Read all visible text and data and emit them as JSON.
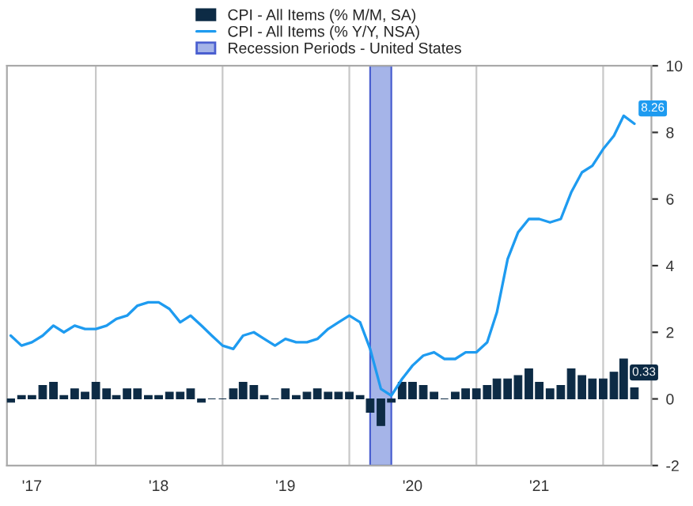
{
  "chart_data": {
    "type": "bar",
    "x": [
      "2017-05",
      "2017-06",
      "2017-07",
      "2017-08",
      "2017-09",
      "2017-10",
      "2017-11",
      "2017-12",
      "2018-01",
      "2018-02",
      "2018-03",
      "2018-04",
      "2018-05",
      "2018-06",
      "2018-07",
      "2018-08",
      "2018-09",
      "2018-10",
      "2018-11",
      "2018-12",
      "2019-01",
      "2019-02",
      "2019-03",
      "2019-04",
      "2019-05",
      "2019-06",
      "2019-07",
      "2019-08",
      "2019-09",
      "2019-10",
      "2019-11",
      "2019-12",
      "2020-01",
      "2020-02",
      "2020-03",
      "2020-04",
      "2020-05",
      "2020-06",
      "2020-07",
      "2020-08",
      "2020-09",
      "2020-10",
      "2020-11",
      "2020-12",
      "2021-01",
      "2021-02",
      "2021-03",
      "2021-04",
      "2021-05",
      "2021-06",
      "2021-07",
      "2021-08",
      "2021-09",
      "2021-10",
      "2021-11",
      "2021-12",
      "2022-01",
      "2022-02",
      "2022-03",
      "2022-04"
    ],
    "series": [
      {
        "name": "CPI - All Items (% M/M, SA)",
        "color": "#0d2b45",
        "values": [
          -0.1,
          0.1,
          0.1,
          0.4,
          0.5,
          0.1,
          0.3,
          0.2,
          0.5,
          0.3,
          0.1,
          0.3,
          0.3,
          0.1,
          0.1,
          0.2,
          0.2,
          0.3,
          -0.1,
          0.0,
          0.0,
          0.3,
          0.5,
          0.4,
          0.1,
          0.0,
          0.3,
          0.1,
          0.2,
          0.3,
          0.2,
          0.2,
          0.2,
          0.1,
          -0.4,
          -0.8,
          -0.1,
          0.5,
          0.5,
          0.4,
          0.2,
          0.0,
          0.2,
          0.3,
          0.3,
          0.4,
          0.6,
          0.6,
          0.7,
          0.9,
          0.5,
          0.3,
          0.4,
          0.9,
          0.7,
          0.6,
          0.6,
          0.8,
          1.2,
          0.33
        ],
        "value_labels": [
          null,
          null,
          null,
          null,
          null,
          null,
          null,
          null,
          null,
          null,
          null,
          null,
          null,
          null,
          null,
          null,
          null,
          null,
          null,
          null,
          null,
          null,
          null,
          null,
          null,
          null,
          null,
          null,
          null,
          null,
          null,
          null,
          null,
          null,
          null,
          null,
          null,
          null,
          null,
          null,
          null,
          null,
          null,
          null,
          null,
          null,
          null,
          null,
          null,
          null,
          null,
          null,
          null,
          null,
          null,
          null,
          null,
          null,
          null,
          "0.33"
        ]
      },
      {
        "name": "CPI - All Items (% Y/Y, NSA)",
        "type": "line",
        "color": "#1e9bf0",
        "values": [
          1.9,
          1.6,
          1.7,
          1.9,
          2.2,
          2.0,
          2.2,
          2.1,
          2.1,
          2.2,
          2.4,
          2.5,
          2.8,
          2.9,
          2.9,
          2.7,
          2.3,
          2.5,
          2.2,
          1.9,
          1.6,
          1.5,
          1.9,
          2.0,
          1.8,
          1.6,
          1.8,
          1.7,
          1.7,
          1.8,
          2.1,
          2.3,
          2.5,
          2.3,
          1.5,
          0.3,
          0.1,
          0.6,
          1.0,
          1.3,
          1.4,
          1.2,
          1.2,
          1.4,
          1.4,
          1.7,
          2.6,
          4.2,
          5.0,
          5.4,
          5.4,
          5.3,
          5.4,
          6.2,
          6.8,
          7.0,
          7.5,
          7.9,
          8.5,
          8.26
        ],
        "value_labels": [
          null,
          null,
          null,
          null,
          null,
          null,
          null,
          null,
          null,
          null,
          null,
          null,
          null,
          null,
          null,
          null,
          null,
          null,
          null,
          null,
          null,
          null,
          null,
          null,
          null,
          null,
          null,
          null,
          null,
          null,
          null,
          null,
          null,
          null,
          null,
          null,
          null,
          null,
          null,
          null,
          null,
          null,
          null,
          null,
          null,
          null,
          null,
          null,
          null,
          null,
          null,
          null,
          null,
          null,
          null,
          null,
          null,
          null,
          null,
          "8.26"
        ]
      }
    ],
    "bands": [
      {
        "axis": "x",
        "from": "2020-03-01",
        "to": "2020-05-01",
        "label": "Recession Periods - United States",
        "color": "#a5b4e8"
      }
    ],
    "ref_lines": [
      {
        "axis": "x",
        "value": "2018-01-01",
        "color": "#c8c8c8"
      },
      {
        "axis": "x",
        "value": "2019-01-01",
        "color": "#c8c8c8"
      },
      {
        "axis": "x",
        "value": "2020-01-01",
        "color": "#c8c8c8"
      },
      {
        "axis": "x",
        "value": "2021-01-01",
        "color": "#c8c8c8"
      },
      {
        "axis": "x",
        "value": "2022-01-01",
        "color": "#c8c8c8"
      }
    ],
    "xlim": [
      "2017-04-20",
      "2022-05-20"
    ],
    "xticks": [
      {
        "value": "2017-07-01",
        "label": "'17"
      },
      {
        "value": "2018-07-01",
        "label": "'18"
      },
      {
        "value": "2019-07-01",
        "label": "'19"
      },
      {
        "value": "2020-07-01",
        "label": "'20"
      },
      {
        "value": "2021-07-01",
        "label": "'21"
      }
    ],
    "ylim": [
      -2,
      10
    ],
    "yticks": [
      -2,
      0,
      2,
      4,
      6,
      8,
      10
    ],
    "grid": false,
    "legend": "top"
  }
}
